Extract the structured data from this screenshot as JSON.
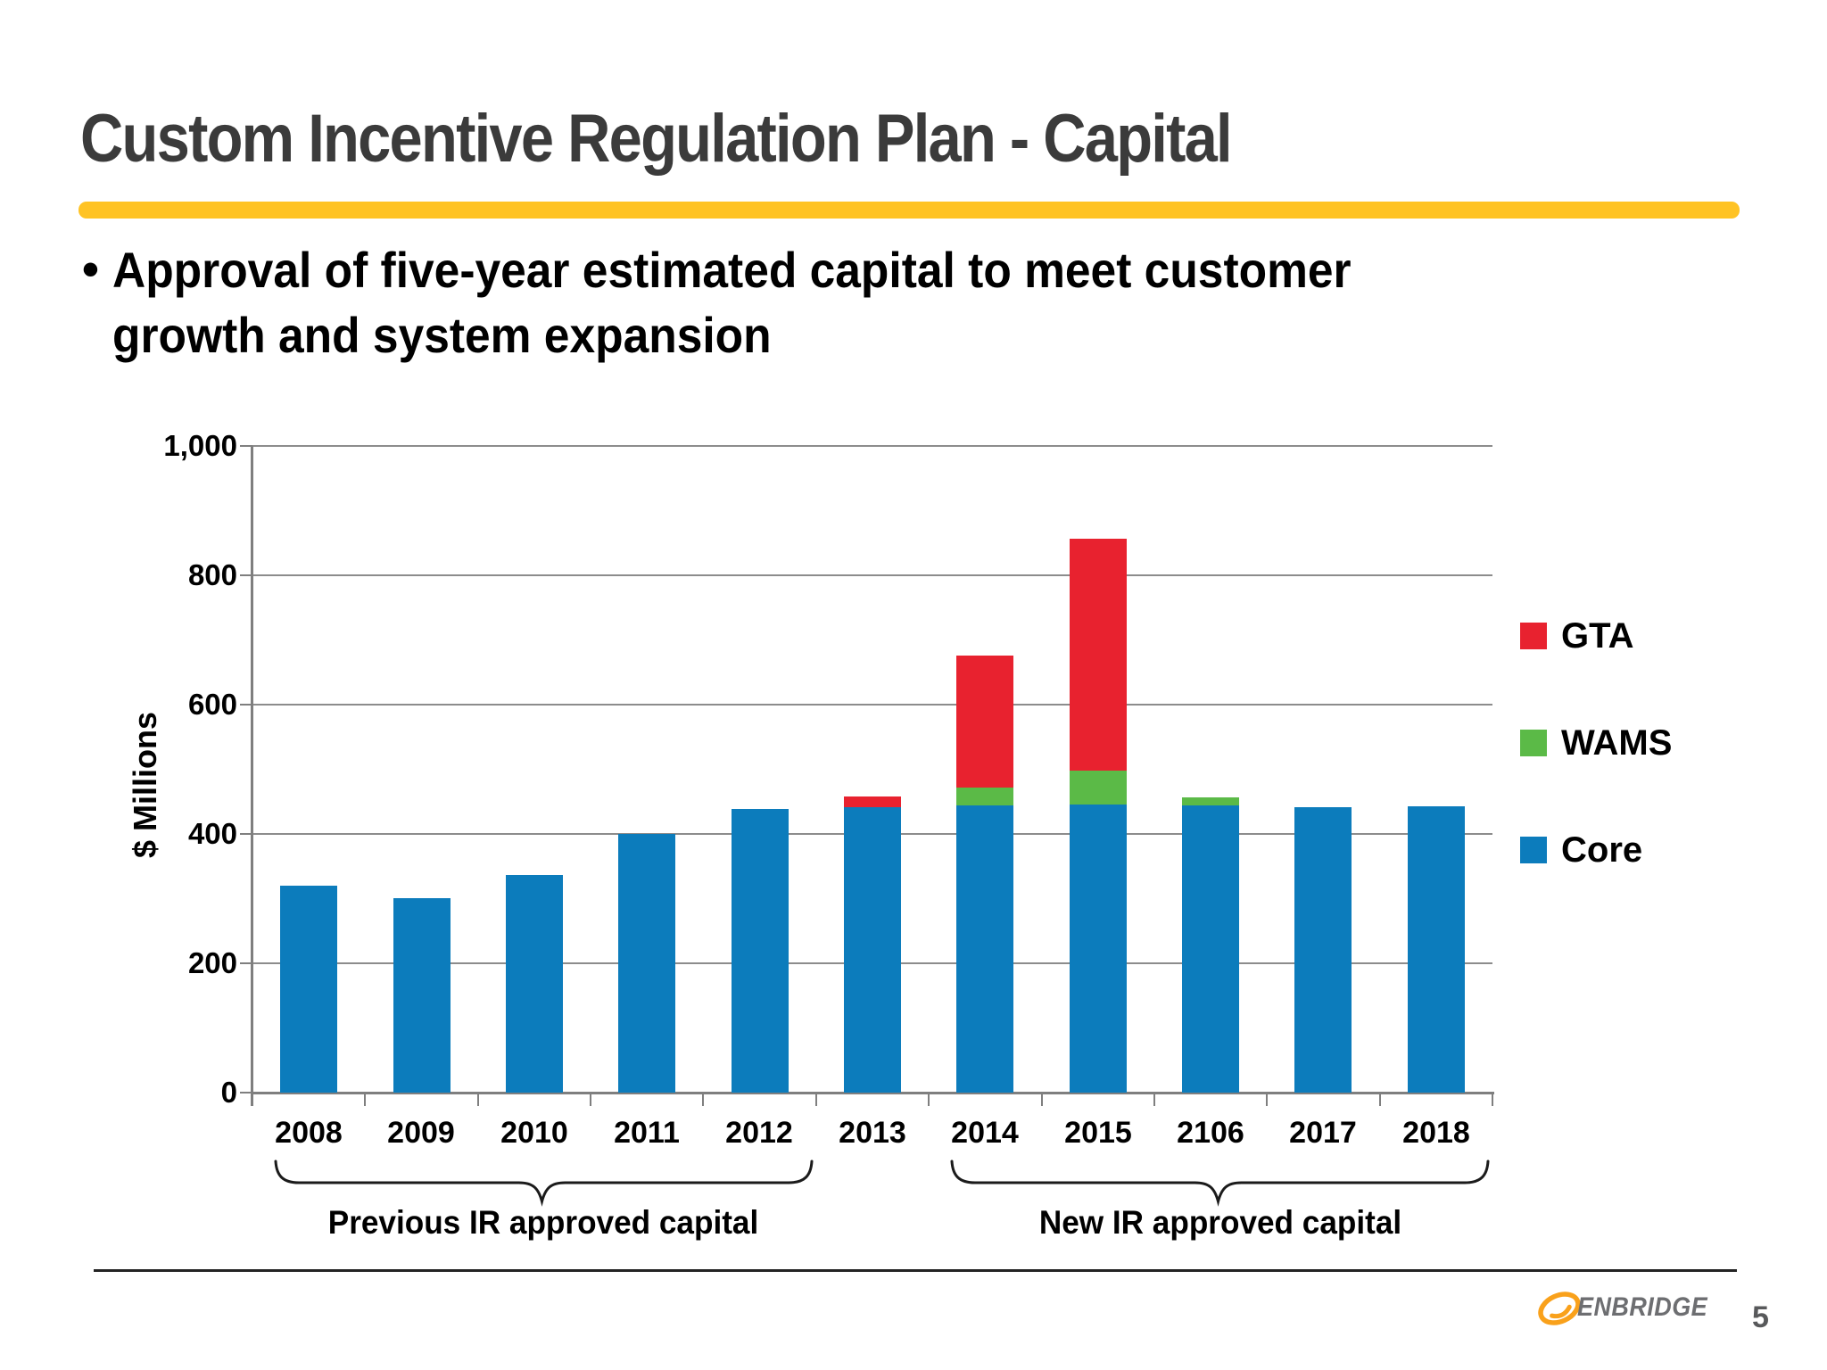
{
  "slide": {
    "title": "Custom Incentive Regulation Plan - Capital",
    "accent_color": "#FFC324",
    "bullet": {
      "marker": "•",
      "line1": "Approval of five-year estimated capital to meet customer",
      "line2": "growth and system expansion"
    },
    "footer": {
      "brand": "ENBRIDGE",
      "logo_icon": "enbridge-swirl",
      "logo_color": "#F9A11B",
      "brand_text_color": "#6D6E71",
      "page_number": "5"
    }
  },
  "chart_data": {
    "type": "bar",
    "stacked": true,
    "title": "",
    "xlabel": "",
    "ylabel": "$ Millions",
    "ylim": [
      0,
      1000
    ],
    "grid": true,
    "legend_position": "right",
    "categories": [
      "2008",
      "2009",
      "2010",
      "2011",
      "2012",
      "2013",
      "2014",
      "2015",
      "2106",
      "2017",
      "2018"
    ],
    "series": [
      {
        "name": "Core",
        "color": "#0C7CBC",
        "values": [
          320,
          300,
          337,
          400,
          438,
          441,
          444,
          446,
          444,
          442,
          443
        ]
      },
      {
        "name": "WAMS",
        "color": "#5BBA47",
        "values": [
          0,
          0,
          0,
          0,
          0,
          0,
          27,
          53,
          12,
          0,
          0
        ]
      },
      {
        "name": "GTA",
        "color": "#E8222F",
        "values": [
          0,
          0,
          0,
          0,
          0,
          16,
          204,
          359,
          0,
          0,
          0
        ]
      }
    ],
    "yticks": [
      {
        "value": 0,
        "label": "0"
      },
      {
        "value": 200,
        "label": "200"
      },
      {
        "value": 400,
        "label": "400"
      },
      {
        "value": 600,
        "label": "600"
      },
      {
        "value": 800,
        "label": "800"
      },
      {
        "value": 1000,
        "label": "1,000"
      }
    ],
    "legend": [
      {
        "label": "GTA",
        "color": "#E8222F"
      },
      {
        "label": "WAMS",
        "color": "#5BBA47"
      },
      {
        "label": "Core",
        "color": "#0C7CBC"
      }
    ],
    "annotations": [
      {
        "label": "Previous IR approved capital",
        "span": [
          "2008",
          "2012"
        ]
      },
      {
        "label": "New IR approved capital",
        "span": [
          "2014",
          "2018"
        ]
      }
    ]
  }
}
